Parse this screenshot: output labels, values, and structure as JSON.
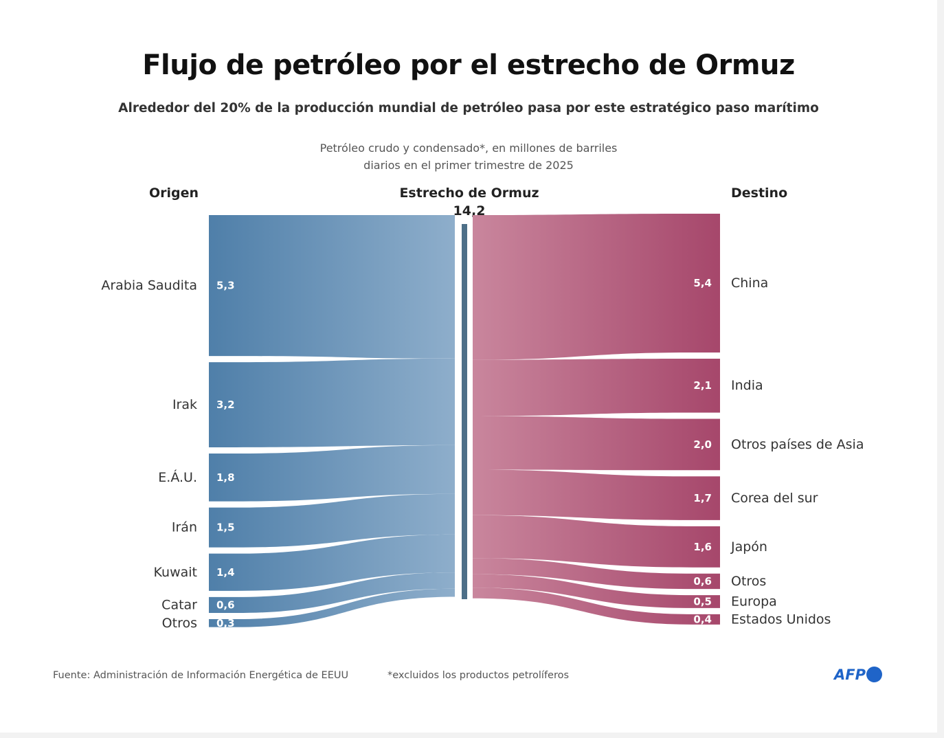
{
  "title": "Flujo de petróleo por el estrecho de Ormuz",
  "subtitle": "Alrededor del 20% de la producción mundial de petróleo pasa por este estratégico paso marítimo",
  "note": [
    "Petróleo crudo y condensado*, en millones de barriles",
    "diarios en el primer trimestre de 2025"
  ],
  "headers": {
    "origin": "Origen",
    "center": "Estrecho de Ormuz",
    "center_value": "14,2",
    "destination": "Destino"
  },
  "footer": {
    "source": "Fuente: Administración de Información Energética de EEUU",
    "footnote": "*excluidos los productos petrolíferos",
    "logo": "AFP"
  },
  "chart_data": {
    "type": "sankey",
    "unit": "millones de barriles diarios",
    "center": {
      "name": "Estrecho de Ormuz",
      "value": 14.2
    },
    "origins": [
      {
        "name": "Arabia Saudita",
        "value": 5.3,
        "label": "5,3"
      },
      {
        "name": "Irak",
        "value": 3.2,
        "label": "3,2"
      },
      {
        "name": "E.Á.U.",
        "value": 1.8,
        "label": "1,8"
      },
      {
        "name": "Irán",
        "value": 1.5,
        "label": "1,5"
      },
      {
        "name": "Kuwait",
        "value": 1.4,
        "label": "1,4"
      },
      {
        "name": "Catar",
        "value": 0.6,
        "label": "0,6"
      },
      {
        "name": "Otros",
        "value": 0.3,
        "label": "0,3"
      }
    ],
    "destinations": [
      {
        "name": "China",
        "value": 5.4,
        "label": "5,4"
      },
      {
        "name": "India",
        "value": 2.1,
        "label": "2,1"
      },
      {
        "name": "Otros países de Asia",
        "value": 2.0,
        "label": "2,0"
      },
      {
        "name": "Corea del sur",
        "value": 1.7,
        "label": "1,7"
      },
      {
        "name": "Japón",
        "value": 1.6,
        "label": "1,6"
      },
      {
        "name": "Otros",
        "value": 0.6,
        "label": "0,6"
      },
      {
        "name": "Europa",
        "value": 0.5,
        "label": "0,5"
      },
      {
        "name": "Estados Unidos",
        "value": 0.4,
        "label": "0,4"
      }
    ],
    "colors": {
      "origin": "#4f7fa9",
      "origin_light": "#8eaecb",
      "destination": "#a6476b",
      "destination_light": "#c9869d",
      "center_bar": "#4d6f88",
      "afp": "#1f64c8"
    }
  }
}
